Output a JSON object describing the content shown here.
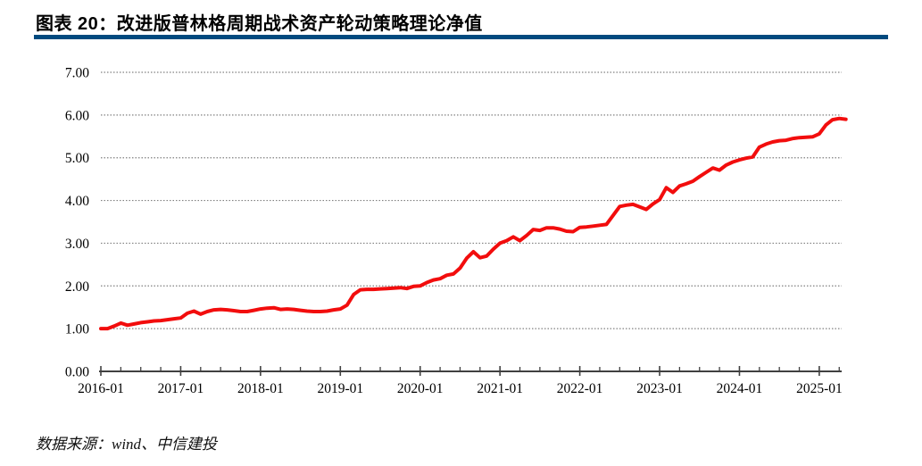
{
  "header": {
    "title": "图表 20：改进版普林格周期战术资产轮动策略理论净值"
  },
  "footer": {
    "source_label": "数据来源：wind、中信建投"
  },
  "colors": {
    "title_rule": "#004A7F",
    "series_line": "#F20D0D",
    "gridline": "#808080",
    "axis": "#404040",
    "text": "#000000",
    "background": "#FFFFFF"
  },
  "chart_data": {
    "type": "line",
    "title": "改进版普林格周期战术资产轮动策略理论净值",
    "xlabel": "",
    "ylabel": "",
    "ylim": [
      0,
      7
    ],
    "y_ticks": [
      0,
      1,
      2,
      3,
      4,
      5,
      6,
      7
    ],
    "y_tick_labels": [
      "0.00",
      "1.00",
      "2.00",
      "3.00",
      "4.00",
      "5.00",
      "6.00",
      "7.00"
    ],
    "x_tick_labels": [
      "2016-01",
      "2017-01",
      "2018-01",
      "2019-01",
      "2020-01",
      "2021-01",
      "2022-01",
      "2023-01",
      "2024-01",
      "2025-01"
    ],
    "x_minor_tick_interval_months": 3,
    "grid": "horizontal dotted",
    "legend": "none",
    "series": [
      {
        "name": "改进版普林格周期战术资产轮动策略理论净值",
        "start": "2016-01",
        "frequency": "monthly",
        "values": [
          1.0,
          1.0,
          1.06,
          1.13,
          1.08,
          1.11,
          1.14,
          1.16,
          1.18,
          1.19,
          1.21,
          1.23,
          1.25,
          1.36,
          1.41,
          1.34,
          1.4,
          1.44,
          1.45,
          1.44,
          1.42,
          1.4,
          1.4,
          1.43,
          1.46,
          1.48,
          1.49,
          1.45,
          1.46,
          1.45,
          1.43,
          1.41,
          1.4,
          1.4,
          1.41,
          1.44,
          1.46,
          1.55,
          1.8,
          1.91,
          1.92,
          1.92,
          1.93,
          1.94,
          1.95,
          1.96,
          1.94,
          1.99,
          2.0,
          2.08,
          2.14,
          2.17,
          2.25,
          2.28,
          2.42,
          2.65,
          2.8,
          2.66,
          2.7,
          2.86,
          3.0,
          3.06,
          3.15,
          3.06,
          3.18,
          3.32,
          3.3,
          3.36,
          3.36,
          3.33,
          3.28,
          3.27,
          3.37,
          3.38,
          3.4,
          3.42,
          3.44,
          3.65,
          3.86,
          3.89,
          3.91,
          3.85,
          3.79,
          3.92,
          4.02,
          4.3,
          4.19,
          4.34,
          4.39,
          4.45,
          4.56,
          4.66,
          4.76,
          4.71,
          4.83,
          4.9,
          4.95,
          4.99,
          5.02,
          5.25,
          5.32,
          5.37,
          5.4,
          5.41,
          5.45,
          5.47,
          5.48,
          5.49,
          5.56,
          5.77,
          5.89,
          5.92,
          5.9
        ]
      }
    ]
  }
}
